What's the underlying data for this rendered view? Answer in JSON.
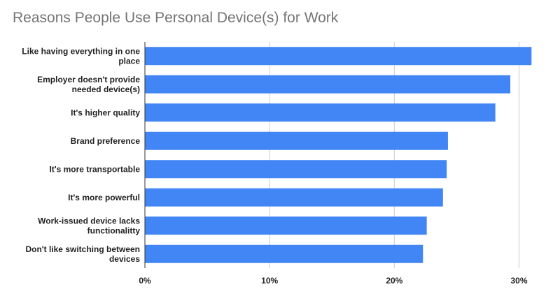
{
  "chart_data": {
    "type": "bar",
    "orientation": "horizontal",
    "title": "Reasons People Use Personal Device(s) for Work",
    "xlabel": "",
    "ylabel": "",
    "categories": [
      [
        "Like having everything in one",
        "place"
      ],
      [
        "Employer doesn't provide",
        "needed device(s)"
      ],
      [
        "It's higher quality"
      ],
      [
        "Brand preference"
      ],
      [
        "It's more transportable"
      ],
      [
        "It's more powerful"
      ],
      [
        "Work-issued device lacks",
        "functionalitty"
      ],
      [
        "Don't like switching between",
        "devices"
      ]
    ],
    "values": [
      31.0,
      29.3,
      28.1,
      24.3,
      24.2,
      23.9,
      22.6,
      22.3
    ],
    "xlim": [
      0,
      31.6
    ],
    "xticks": [
      0,
      10,
      20,
      30
    ],
    "xtick_labels": [
      "0%",
      "10%",
      "20%",
      "30%"
    ],
    "grid": true,
    "legend": "none",
    "colors": {
      "bar": "#4285f4",
      "grid": "#cccccc",
      "axis": "#333333",
      "title": "#757575",
      "label": "#222222"
    }
  }
}
